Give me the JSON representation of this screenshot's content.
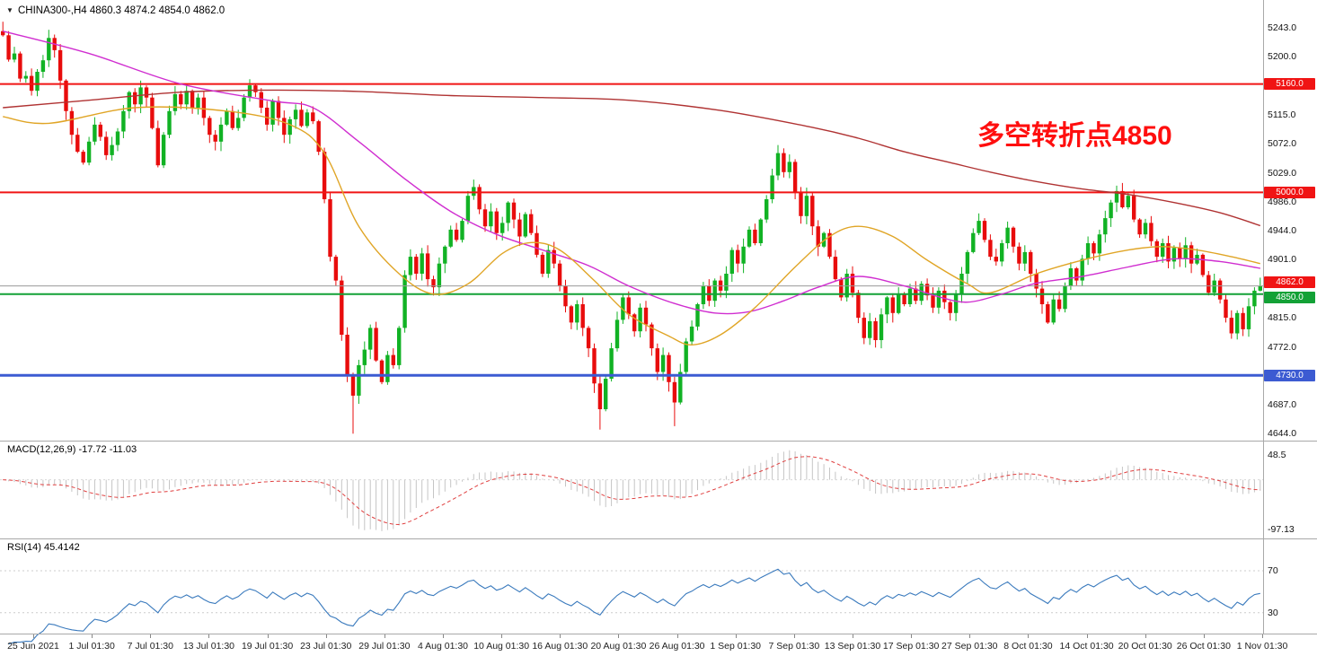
{
  "header": {
    "symbol_timeframe": "CHINA300-,H4",
    "ohlc": "4860.3 4874.2 4854.0 4862.0",
    "dropdown_icon": "▼"
  },
  "annotation": {
    "text": "多空转折点4850",
    "color": "#ff0f0f"
  },
  "colors": {
    "candle_up": "#11b224",
    "candle_down": "#e80c0c",
    "resistance_line": "#f01414",
    "pivot_line": "#13a136",
    "support_line": "#3c5bd2",
    "current_price_line": "#9a9a9a",
    "ma_fast": "#e0a526",
    "ma_mid": "#d02ed0",
    "ma_slow": "#b03333",
    "macd_histogram": "#c5c5c5",
    "macd_signal": "#e04040",
    "rsi_line": "#3a7abd"
  },
  "price_axis": {
    "ticks": [
      "5243.0",
      "5200.0",
      "5115.0",
      "5072.0",
      "5029.0",
      "4986.0",
      "4944.0",
      "4901.0",
      "4815.0",
      "4772.0",
      "4687.0",
      "4644.0"
    ],
    "badges": [
      {
        "text": "5160.0",
        "value": 5160.0,
        "bg": "#f01414",
        "dy": 0
      },
      {
        "text": "5000.0",
        "value": 5000.0,
        "bg": "#f01414",
        "dy": 0
      },
      {
        "text": "4862.0",
        "value": 4862.0,
        "bg": "#f01414",
        "dy": -4,
        "role": "current-price"
      },
      {
        "text": "4850.0",
        "value": 4850.0,
        "bg": "#13a136",
        "dy": 4
      },
      {
        "text": "4730.0",
        "value": 4730.0,
        "bg": "#3c5bd2",
        "dy": 0
      }
    ]
  },
  "indicators": {
    "macd": {
      "label": "MACD(12,26,9) -17.72 -11.03",
      "axis_max": "48.5",
      "axis_min": "-97.13",
      "axis_max_value": 48.5,
      "axis_min_value": -97.13
    },
    "rsi": {
      "label": "RSI(14) 45.4142",
      "levels": [
        70,
        30
      ]
    }
  },
  "time_axis": {
    "labels": [
      "25 Jun 2021",
      "1 Jul 01:30",
      "7 Jul 01:30",
      "13 Jul 01:30",
      "19 Jul 01:30",
      "23 Jul 01:30",
      "29 Jul 01:30",
      "4 Aug 01:30",
      "10 Aug 01:30",
      "16 Aug 01:30",
      "20 Aug 01:30",
      "26 Aug 01:30",
      "1 Sep 01:30",
      "7 Sep 01:30",
      "13 Sep 01:30",
      "17 Sep 01:30",
      "27 Sep 01:30",
      "8 Oct 01:30",
      "14 Oct 01:30",
      "20 Oct 01:30",
      "26 Oct 01:30",
      "1 Nov 01:30"
    ]
  },
  "chart_data": [
    {
      "type": "candlestick",
      "title": "CHINA300- H4",
      "ylim": [
        4635,
        5284
      ],
      "first_open": 5238,
      "closes": [
        5232,
        5196,
        5205,
        5168,
        5172,
        5150,
        5178,
        5195,
        5228,
        5210,
        5165,
        5120,
        5085,
        5060,
        5044,
        5075,
        5100,
        5082,
        5055,
        5070,
        5090,
        5120,
        5148,
        5130,
        5155,
        5140,
        5095,
        5040,
        5085,
        5120,
        5145,
        5130,
        5150,
        5125,
        5140,
        5110,
        5085,
        5075,
        5100,
        5120,
        5095,
        5110,
        5140,
        5158,
        5148,
        5125,
        5100,
        5135,
        5110,
        5085,
        5108,
        5122,
        5098,
        5118,
        5105,
        5060,
        4990,
        4905,
        4870,
        4790,
        4730,
        4700,
        4745,
        4768,
        4800,
        4752,
        4720,
        4760,
        4745,
        4800,
        4878,
        4905,
        4880,
        4910,
        4872,
        4860,
        4895,
        4920,
        4945,
        4930,
        4958,
        4995,
        5008,
        4975,
        4950,
        4972,
        4940,
        4955,
        4985,
        4960,
        4935,
        4968,
        4940,
        4908,
        4880,
        4915,
        4895,
        4862,
        4832,
        4808,
        4835,
        4800,
        4770,
        4718,
        4680,
        4725,
        4770,
        4812,
        4845,
        4820,
        4795,
        4830,
        4805,
        4770,
        4735,
        4760,
        4720,
        4690,
        4735,
        4780,
        4802,
        4835,
        4862,
        4840,
        4870,
        4855,
        4880,
        4915,
        4895,
        4920,
        4945,
        4925,
        4960,
        4990,
        5025,
        5058,
        5030,
        5045,
        5000,
        4965,
        4995,
        4950,
        4920,
        4940,
        4905,
        4872,
        4845,
        4880,
        4852,
        4815,
        4785,
        4810,
        4782,
        4820,
        4845,
        4822,
        4850,
        4835,
        4858,
        4840,
        4865,
        4848,
        4830,
        4855,
        4838,
        4822,
        4850,
        4880,
        4912,
        4940,
        4958,
        4930,
        4905,
        4898,
        4925,
        4948,
        4920,
        4895,
        4912,
        4880,
        4858,
        4835,
        4808,
        4842,
        4828,
        4862,
        4888,
        4870,
        4902,
        4925,
        4910,
        4938,
        4962,
        4985,
        5002,
        4978,
        4995,
        4960,
        4938,
        4955,
        4928,
        4905,
        4925,
        4898,
        4918,
        4902,
        4922,
        4895,
        4908,
        4878,
        4852,
        4870,
        4842,
        4815,
        4792,
        4822,
        4798,
        4832,
        4855,
        4862
      ],
      "extremes": {
        "0": [
          5252,
          null
        ],
        "8": [
          5240,
          null
        ],
        "61": [
          null,
          4644
        ],
        "104": [
          null,
          4650
        ],
        "117": [
          null,
          4655
        ],
        "135": [
          5070,
          null
        ],
        "194": [
          5010,
          null
        ],
        "219": [
          4874.2,
          4854.0
        ]
      },
      "hlines": [
        {
          "value": 5160.0,
          "color": "#f01414",
          "width": 2,
          "role": "resistance"
        },
        {
          "value": 5000.0,
          "color": "#f01414",
          "width": 2,
          "role": "resistance"
        },
        {
          "value": 4850.0,
          "color": "#13a136",
          "width": 2,
          "role": "pivot"
        },
        {
          "value": 4730.0,
          "color": "#3c5bd2",
          "width": 3,
          "role": "support"
        },
        {
          "value": 4862.0,
          "color": "#9a9a9a",
          "width": 1,
          "role": "current-price"
        }
      ],
      "moving_averages": [
        {
          "name": "ma-slow",
          "color": "#b03333",
          "points": [
            [
              0,
              5125
            ],
            [
              15,
              5136
            ],
            [
              31,
              5148
            ],
            [
              47,
              5151
            ],
            [
              62,
              5149
            ],
            [
              78,
              5143
            ],
            [
              94,
              5140
            ],
            [
              109,
              5136
            ],
            [
              125,
              5121
            ],
            [
              141,
              5096
            ],
            [
              149,
              5080
            ],
            [
              157,
              5060
            ],
            [
              165,
              5044
            ],
            [
              172,
              5030
            ],
            [
              180,
              5016
            ],
            [
              188,
              5005
            ],
            [
              196,
              4997
            ],
            [
              204,
              4985
            ],
            [
              212,
              4970
            ],
            [
              219,
              4951
            ]
          ]
        },
        {
          "name": "ma-mid",
          "color": "#d02ed0",
          "points": [
            [
              0,
              5238
            ],
            [
              15,
              5205
            ],
            [
              31,
              5160
            ],
            [
              47,
              5135
            ],
            [
              54,
              5125
            ],
            [
              62,
              5075
            ],
            [
              70,
              5020
            ],
            [
              78,
              4972
            ],
            [
              86,
              4938
            ],
            [
              94,
              4915
            ],
            [
              102,
              4892
            ],
            [
              109,
              4862
            ],
            [
              117,
              4836
            ],
            [
              124,
              4822
            ],
            [
              130,
              4824
            ],
            [
              136,
              4840
            ],
            [
              142,
              4860
            ],
            [
              149,
              4876
            ],
            [
              157,
              4862
            ],
            [
              163,
              4846
            ],
            [
              168,
              4838
            ],
            [
              174,
              4850
            ],
            [
              180,
              4866
            ],
            [
              188,
              4876
            ],
            [
              196,
              4890
            ],
            [
              204,
              4902
            ],
            [
              212,
              4898
            ],
            [
              219,
              4888
            ]
          ]
        },
        {
          "name": "ma-fast",
          "color": "#e0a526",
          "points": [
            [
              0,
              5112
            ],
            [
              8,
              5102
            ],
            [
              23,
              5125
            ],
            [
              39,
              5120
            ],
            [
              50,
              5100
            ],
            [
              56,
              5058
            ],
            [
              62,
              4950
            ],
            [
              69,
              4880
            ],
            [
              75,
              4850
            ],
            [
              81,
              4865
            ],
            [
              87,
              4910
            ],
            [
              92,
              4926
            ],
            [
              97,
              4915
            ],
            [
              103,
              4870
            ],
            [
              109,
              4820
            ],
            [
              116,
              4788
            ],
            [
              120,
              4775
            ],
            [
              125,
              4790
            ],
            [
              131,
              4830
            ],
            [
              138,
              4890
            ],
            [
              144,
              4935
            ],
            [
              149,
              4950
            ],
            [
              155,
              4935
            ],
            [
              161,
              4900
            ],
            [
              168,
              4865
            ],
            [
              172,
              4852
            ],
            [
              180,
              4880
            ],
            [
              188,
              4900
            ],
            [
              196,
              4915
            ],
            [
              202,
              4920
            ],
            [
              208,
              4915
            ],
            [
              214,
              4905
            ],
            [
              219,
              4895
            ]
          ]
        }
      ]
    },
    {
      "type": "bar",
      "name": "MACD(12,26,9)",
      "params": [
        12,
        26,
        9
      ],
      "current_values": [
        -17.72,
        -11.03
      ],
      "ylim": [
        -115,
        75
      ],
      "derived_from": "closes",
      "note": "histogram = EMA12-EMA26, dashed line = EMA9 signal"
    },
    {
      "type": "line",
      "name": "RSI(14)",
      "period": 14,
      "current_value": 45.4142,
      "ylim": [
        10,
        100
      ],
      "levels": [
        70,
        30
      ],
      "derived_from": "closes"
    }
  ]
}
